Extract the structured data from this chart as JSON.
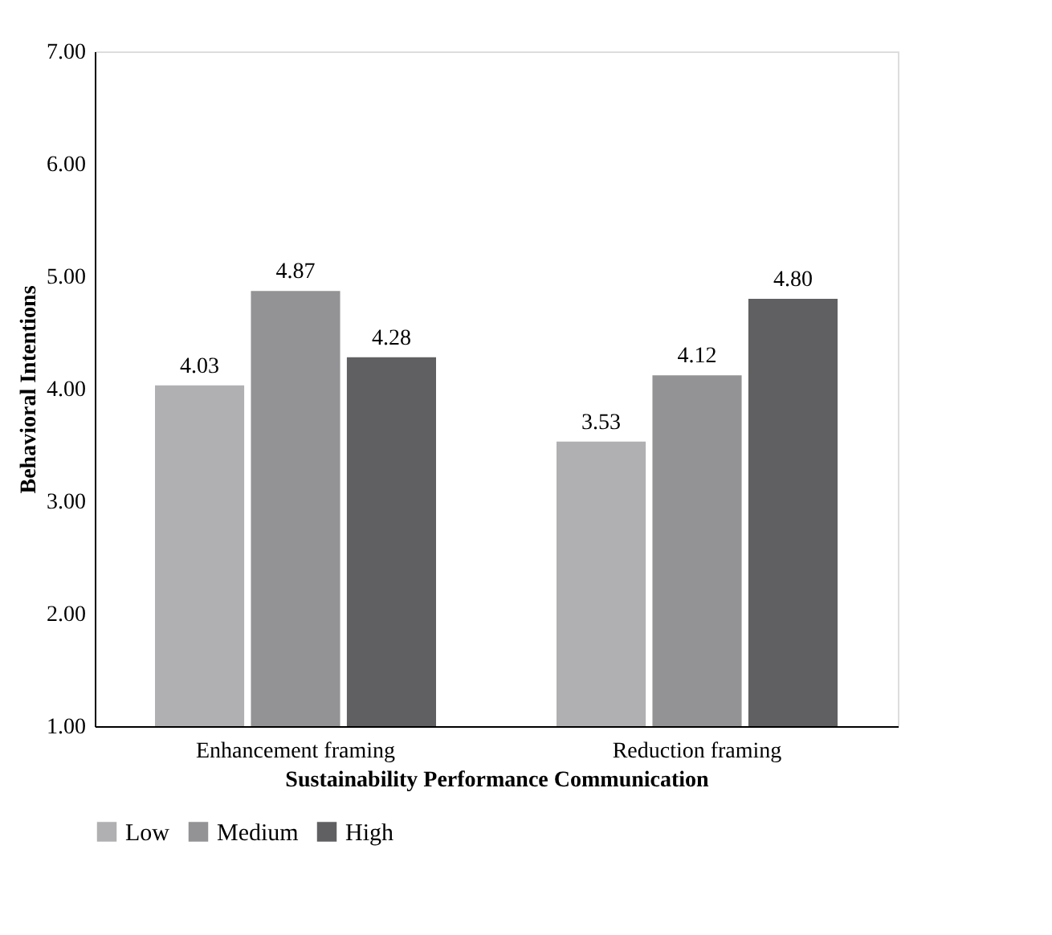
{
  "chart_data": {
    "type": "bar",
    "xlabel": "Sustainability Performance Communication",
    "ylabel": "Behavioral Intentions",
    "categories": [
      "Enhancement framing",
      "Reduction framing"
    ],
    "series": [
      {
        "name": "Low",
        "color": "#b0b0b2",
        "values": [
          4.03,
          3.53
        ],
        "value_labels": [
          "4.03",
          "3.53"
        ]
      },
      {
        "name": "Medium",
        "color": "#939395",
        "values": [
          4.87,
          4.12
        ],
        "value_labels": [
          "4.87",
          "4.12"
        ]
      },
      {
        "name": "High",
        "color": "#606062",
        "values": [
          4.28,
          4.8
        ],
        "value_labels": [
          "4.28",
          "4.80"
        ]
      }
    ],
    "ylim": [
      1,
      7
    ],
    "yticks": [
      {
        "value": 1,
        "label": "1.00"
      },
      {
        "value": 2,
        "label": "2.00"
      },
      {
        "value": 3,
        "label": "3.00"
      },
      {
        "value": 4,
        "label": "4.00"
      },
      {
        "value": 5,
        "label": "5.00"
      },
      {
        "value": 6,
        "label": "6.00"
      },
      {
        "value": 7,
        "label": "7.00"
      }
    ],
    "grid": false,
    "legend": "bottom"
  }
}
